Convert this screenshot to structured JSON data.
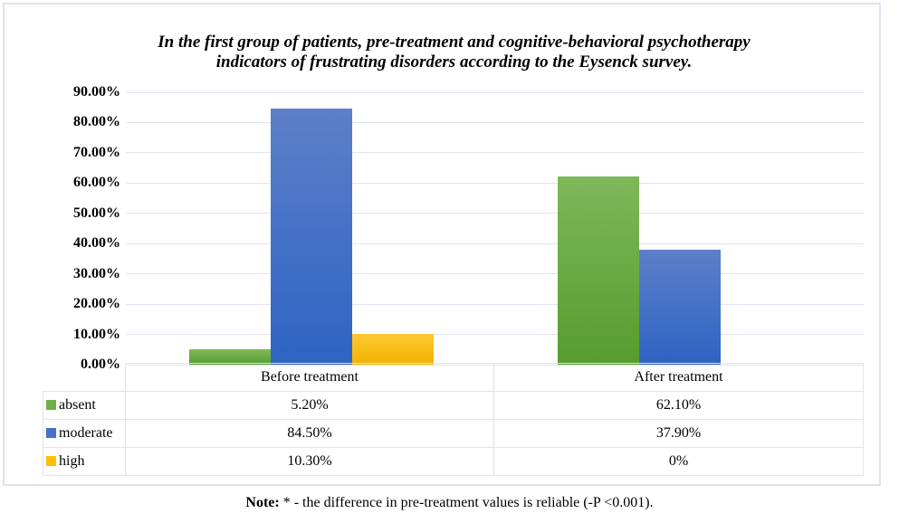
{
  "chart_data": {
    "type": "bar",
    "title": "In the first group of patients, pre-treatment and cognitive-behavioral psychotherapy indicators of frustrating disorders according to the Eysenck survey.",
    "title_lines": [
      "In the first group of patients, pre-treatment and cognitive-behavioral psychotherapy",
      "indicators of frustrating disorders according to the Eysenck survey."
    ],
    "categories": [
      "Before treatment",
      "After treatment"
    ],
    "series": [
      {
        "name": "absent",
        "legend_color": "#70ad47",
        "gradient": [
          "#7eb85a",
          "#569d2e"
        ],
        "values": [
          5.2,
          62.1
        ],
        "display_values": [
          "5.20%",
          "62.10%"
        ]
      },
      {
        "name": "moderate",
        "legend_color": "#4472c4",
        "gradient": [
          "#5c80c8",
          "#2e63c3"
        ],
        "values": [
          84.5,
          37.9
        ],
        "display_values": [
          "84.50%",
          "37.90%"
        ]
      },
      {
        "name": "high",
        "legend_color": "#ffc000",
        "gradient": [
          "#ffc832",
          "#f0b401"
        ],
        "values": [
          10.3,
          0
        ],
        "display_values": [
          "10.30%",
          "0%"
        ]
      }
    ],
    "xlabel": "",
    "ylabel": "",
    "ylim": [
      0,
      90
    ],
    "ytick_step": 10,
    "ytick_labels": [
      "0.00%",
      "10.00%",
      "20.00%",
      "30.00%",
      "40.00%",
      "50.00%",
      "60.00%",
      "70.00%",
      "80.00%",
      "90.00%"
    ],
    "grid": true,
    "legend_position": "table-left",
    "colors": {
      "grid": "#dfe4ee",
      "table_border": "#dde2ec",
      "frame_border": "#dee3ec"
    }
  },
  "note": {
    "label": "Note:",
    "text": " * - the difference in pre-treatment values is reliable (-P <0.001)."
  }
}
